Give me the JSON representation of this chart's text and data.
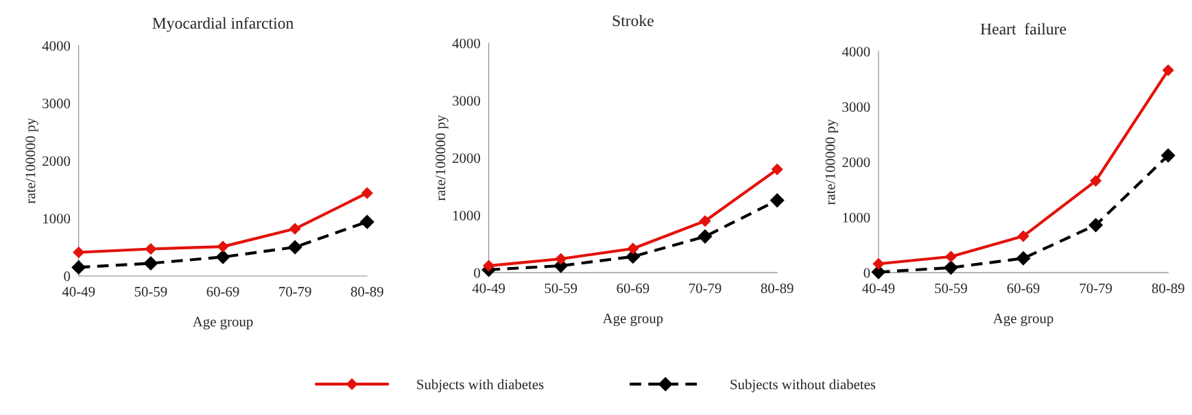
{
  "chart_data": [
    {
      "type": "line",
      "title": "Myocardial infarction",
      "xlabel": "Age group",
      "ylabel": "rate/100000 py",
      "categories": [
        "40-49",
        "50-59",
        "60-69",
        "70-79",
        "80-89"
      ],
      "ylim": [
        0,
        4000
      ],
      "yticks": [
        0,
        1000,
        2000,
        3000,
        4000
      ],
      "marker": "diamond",
      "legend": "bottom",
      "series": [
        {
          "name": "Subjects with diabetes",
          "color": "#e3120b",
          "line_style": "solid",
          "values": [
            410,
            470,
            510,
            820,
            1440
          ]
        },
        {
          "name": "Subjects without diabetes",
          "color": "#000000",
          "line_style": "dashed",
          "values": [
            150,
            220,
            330,
            500,
            940
          ]
        }
      ]
    },
    {
      "type": "line",
      "title": "Stroke",
      "xlabel": "Age group",
      "ylabel": "rate/100000 py",
      "categories": [
        "40-49",
        "50-59",
        "60-69",
        "70-79",
        "80-89"
      ],
      "ylim": [
        0,
        4000
      ],
      "yticks": [
        0,
        1000,
        2000,
        3000,
        4000
      ],
      "marker": "diamond",
      "series": [
        {
          "color": "#e3120b",
          "line_style": "solid",
          "values": [
            120,
            240,
            420,
            900,
            1800
          ]
        },
        {
          "color": "#000000",
          "line_style": "dashed",
          "values": [
            50,
            120,
            280,
            630,
            1260
          ]
        }
      ]
    },
    {
      "type": "line",
      "title": "Heart  failure",
      "xlabel": "Age group",
      "ylabel": "rate/100000 py",
      "categories": [
        "40-49",
        "50-59",
        "60-69",
        "70-79",
        "80-89"
      ],
      "ylim": [
        0,
        4000
      ],
      "yticks": [
        0,
        1000,
        2000,
        3000,
        4000
      ],
      "marker": "diamond",
      "series": [
        {
          "color": "#e3120b",
          "line_style": "solid",
          "values": [
            160,
            290,
            660,
            1660,
            3660
          ]
        },
        {
          "color": "#000000",
          "line_style": "dashed",
          "values": [
            10,
            90,
            260,
            860,
            2120
          ]
        }
      ]
    }
  ]
}
